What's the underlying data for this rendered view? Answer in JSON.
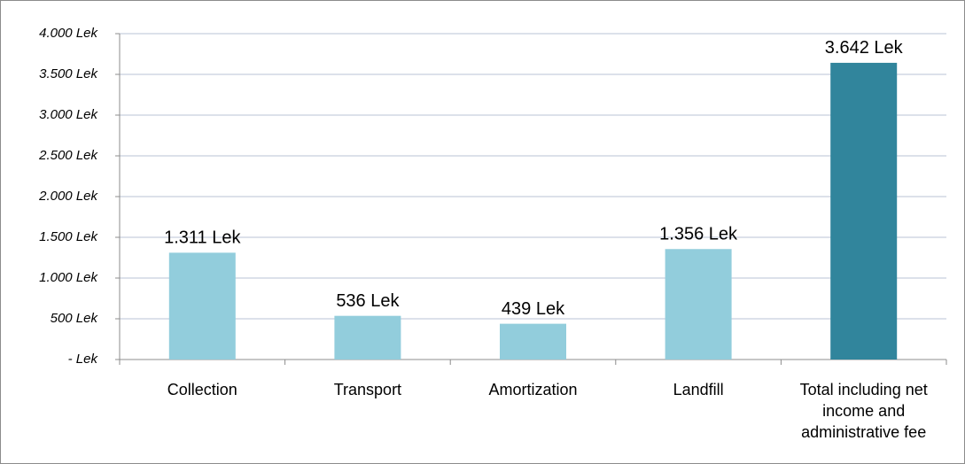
{
  "chart_data": {
    "type": "bar",
    "categories": [
      "Collection",
      "Transport",
      "Amortization",
      "Landfill",
      "Total including net income and administrative fee"
    ],
    "values": [
      1311,
      536,
      439,
      1356,
      3642
    ],
    "value_labels": [
      "1.311 Lek",
      "536 Lek",
      "439 Lek",
      "1.356 Lek",
      "3.642 Lek"
    ],
    "colors": [
      "#92cddc",
      "#92cddc",
      "#92cddc",
      "#92cddc",
      "#31859c"
    ],
    "ylim": [
      0,
      4000
    ],
    "yticks": [
      {
        "value": 0,
        "label": "- Lek"
      },
      {
        "value": 500,
        "label": "500 Lek"
      },
      {
        "value": 1000,
        "label": "1.000 Lek"
      },
      {
        "value": 1500,
        "label": "1.500 Lek"
      },
      {
        "value": 2000,
        "label": "2.000 Lek"
      },
      {
        "value": 2500,
        "label": "2.500 Lek"
      },
      {
        "value": 3000,
        "label": "3.000 Lek"
      },
      {
        "value": 3500,
        "label": "3.500 Lek"
      },
      {
        "value": 4000,
        "label": "4.000 Lek"
      }
    ],
    "grid": true
  }
}
